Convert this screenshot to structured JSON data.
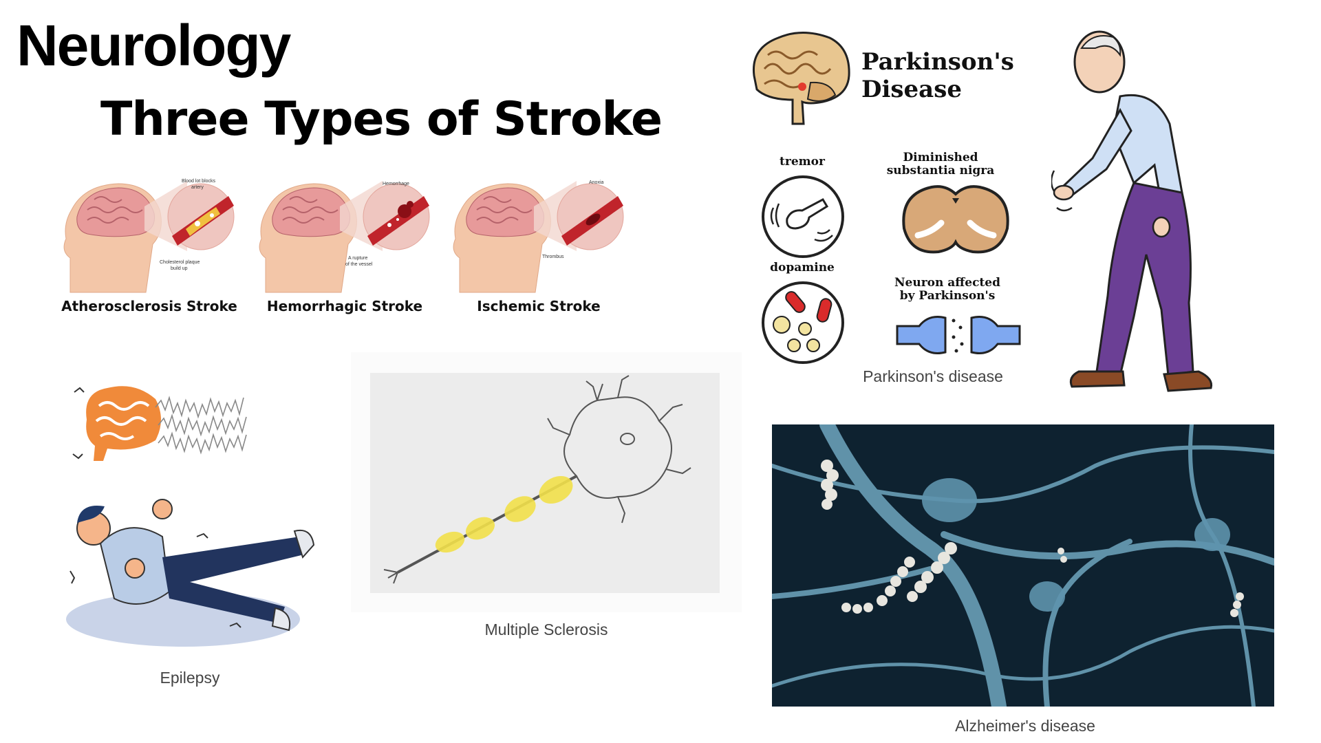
{
  "slide": {
    "title": "Neurology"
  },
  "stroke": {
    "heading": "Three Types of Stroke",
    "items": [
      {
        "label": "Atherosclerosis Stroke",
        "annotations": [
          "Blood lot blocks",
          "artery",
          "Cholesterol plaque",
          "build up"
        ]
      },
      {
        "label": "Hemorrhagic Stroke",
        "annotations": [
          "Hemorrhage",
          "A rupture",
          "of the vessel"
        ]
      },
      {
        "label": "Ischemic Stroke",
        "annotations": [
          "Anoxia",
          "Thrombus"
        ]
      }
    ]
  },
  "parkinsons": {
    "heading_line1": "Parkinson's",
    "heading_line2": "Disease",
    "labels": {
      "tremor": "tremor",
      "diminished_line1": "Diminished",
      "diminished_line2": "substantia nigra",
      "dopamine": "dopamine",
      "neuron_line1": "Neuron affected",
      "neuron_line2": "by Parkinson's"
    },
    "caption": "Parkinson's disease"
  },
  "epilepsy": {
    "caption": "Epilepsy"
  },
  "ms": {
    "caption": "Multiple Sclerosis"
  },
  "alzheimers": {
    "caption": "Alzheimer's disease"
  }
}
